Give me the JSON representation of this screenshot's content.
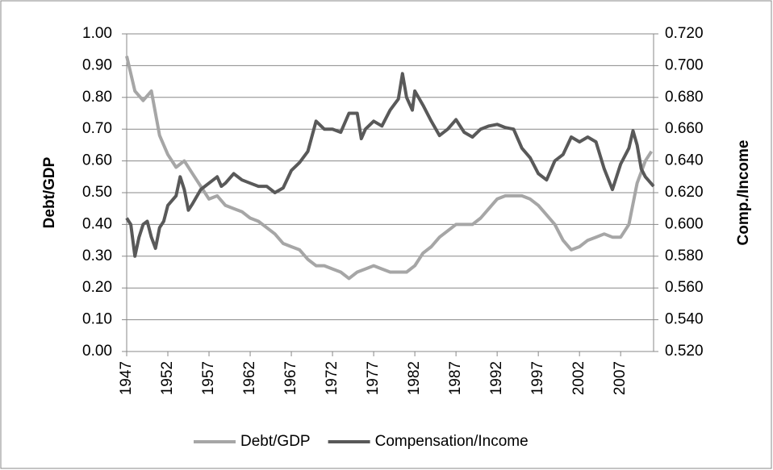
{
  "chart_data": {
    "type": "line",
    "y_label": "Debt/GDP",
    "y2_label": "Comp./Income",
    "xlim": [
      1947,
      2011
    ],
    "xticks": [
      1947,
      1952,
      1957,
      1962,
      1967,
      1972,
      1977,
      1982,
      1987,
      1992,
      1997,
      2002,
      2007
    ],
    "ylim": [
      0,
      1
    ],
    "yticks": [
      {
        "value": 0,
        "label": "0.00"
      },
      {
        "value": 0.1,
        "label": "0.10"
      },
      {
        "value": 0.2,
        "label": "0.20"
      },
      {
        "value": 0.3,
        "label": "0.30"
      },
      {
        "value": 0.4,
        "label": "0.40"
      },
      {
        "value": 0.5,
        "label": "0.50"
      },
      {
        "value": 0.6,
        "label": "0.60"
      },
      {
        "value": 0.7,
        "label": "0.70"
      },
      {
        "value": 0.8,
        "label": "0.80"
      },
      {
        "value": 0.9,
        "label": "0.90"
      },
      {
        "value": 1,
        "label": "1.00"
      }
    ],
    "y2lim": [
      0.52,
      0.72
    ],
    "y2ticks": [
      {
        "value": 0.52,
        "label": "0.520"
      },
      {
        "value": 0.54,
        "label": "0.540"
      },
      {
        "value": 0.56,
        "label": "0.560"
      },
      {
        "value": 0.58,
        "label": "0.580"
      },
      {
        "value": 0.6,
        "label": "0.600"
      },
      {
        "value": 0.62,
        "label": "0.620"
      },
      {
        "value": 0.64,
        "label": "0.640"
      },
      {
        "value": 0.66,
        "label": "0.660"
      },
      {
        "value": 0.68,
        "label": "0.680"
      },
      {
        "value": 0.7,
        "label": "0.700"
      },
      {
        "value": 0.72,
        "label": "0.720"
      }
    ],
    "grid": true,
    "legend": "bottom",
    "series": [
      {
        "name": "Debt/GDP",
        "color": "#a6a6a6",
        "x": [
          1947,
          1948,
          1949,
          1950,
          1951,
          1952,
          1953,
          1954,
          1955,
          1956,
          1957,
          1958,
          1959,
          1960,
          1961,
          1962,
          1963,
          1964,
          1965,
          1966,
          1967,
          1968,
          1969,
          1970,
          1971,
          1972,
          1973,
          1974,
          1975,
          1976,
          1977,
          1978,
          1979,
          1980,
          1981,
          1982,
          1983,
          1984,
          1985,
          1986,
          1987,
          1988,
          1989,
          1990,
          1991,
          1992,
          1993,
          1994,
          1995,
          1996,
          1997,
          1998,
          1999,
          2000,
          2001,
          2002,
          2003,
          2004,
          2005,
          2006,
          2007,
          2008,
          2009,
          2010,
          2010.75
        ],
        "values": [
          0.93,
          0.82,
          0.79,
          0.82,
          0.68,
          0.62,
          0.58,
          0.6,
          0.56,
          0.52,
          0.48,
          0.49,
          0.46,
          0.45,
          0.44,
          0.42,
          0.41,
          0.39,
          0.37,
          0.34,
          0.33,
          0.32,
          0.29,
          0.27,
          0.27,
          0.26,
          0.25,
          0.23,
          0.25,
          0.26,
          0.27,
          0.26,
          0.25,
          0.25,
          0.25,
          0.27,
          0.31,
          0.33,
          0.36,
          0.38,
          0.4,
          0.4,
          0.4,
          0.42,
          0.45,
          0.48,
          0.49,
          0.49,
          0.49,
          0.48,
          0.46,
          0.43,
          0.4,
          0.35,
          0.32,
          0.33,
          0.35,
          0.36,
          0.37,
          0.36,
          0.36,
          0.4,
          0.53,
          0.6,
          0.63
        ]
      },
      {
        "name": "Compensation/Income",
        "color": "#595959",
        "axis": "y2",
        "x": [
          1947,
          1947.5,
          1948,
          1948.5,
          1949,
          1949.5,
          1950,
          1950.5,
          1951,
          1951.5,
          1952,
          1953,
          1953.5,
          1954,
          1954.5,
          1955,
          1956,
          1957,
          1958,
          1958.5,
          1959,
          1960,
          1961,
          1962,
          1963,
          1964,
          1965,
          1966,
          1967,
          1968,
          1969,
          1970,
          1971,
          1972,
          1973,
          1974,
          1975,
          1975.5,
          1976,
          1977,
          1978,
          1979,
          1980,
          1980.5,
          1981,
          1981.7,
          1982,
          1983,
          1984,
          1985,
          1986,
          1987,
          1988,
          1989,
          1990,
          1991,
          1992,
          1993,
          1994,
          1995,
          1996,
          1997,
          1998,
          1999,
          2000,
          2001,
          2002,
          2003,
          2004,
          2005,
          2006,
          2007,
          2008,
          2008.5,
          2009,
          2009.5,
          2010,
          2011
        ],
        "values": [
          0.604,
          0.6,
          0.58,
          0.592,
          0.6,
          0.602,
          0.592,
          0.585,
          0.598,
          0.602,
          0.612,
          0.618,
          0.63,
          0.622,
          0.609,
          0.613,
          0.622,
          0.626,
          0.63,
          0.624,
          0.626,
          0.632,
          0.628,
          0.626,
          0.624,
          0.624,
          0.62,
          0.623,
          0.634,
          0.639,
          0.646,
          0.665,
          0.66,
          0.66,
          0.658,
          0.67,
          0.67,
          0.654,
          0.66,
          0.665,
          0.662,
          0.672,
          0.679,
          0.695,
          0.68,
          0.672,
          0.684,
          0.675,
          0.665,
          0.656,
          0.66,
          0.666,
          0.658,
          0.655,
          0.66,
          0.662,
          0.663,
          0.661,
          0.66,
          0.648,
          0.642,
          0.632,
          0.628,
          0.64,
          0.644,
          0.655,
          0.652,
          0.655,
          0.652,
          0.635,
          0.622,
          0.638,
          0.648,
          0.659,
          0.65,
          0.635,
          0.63,
          0.624
        ]
      }
    ]
  }
}
